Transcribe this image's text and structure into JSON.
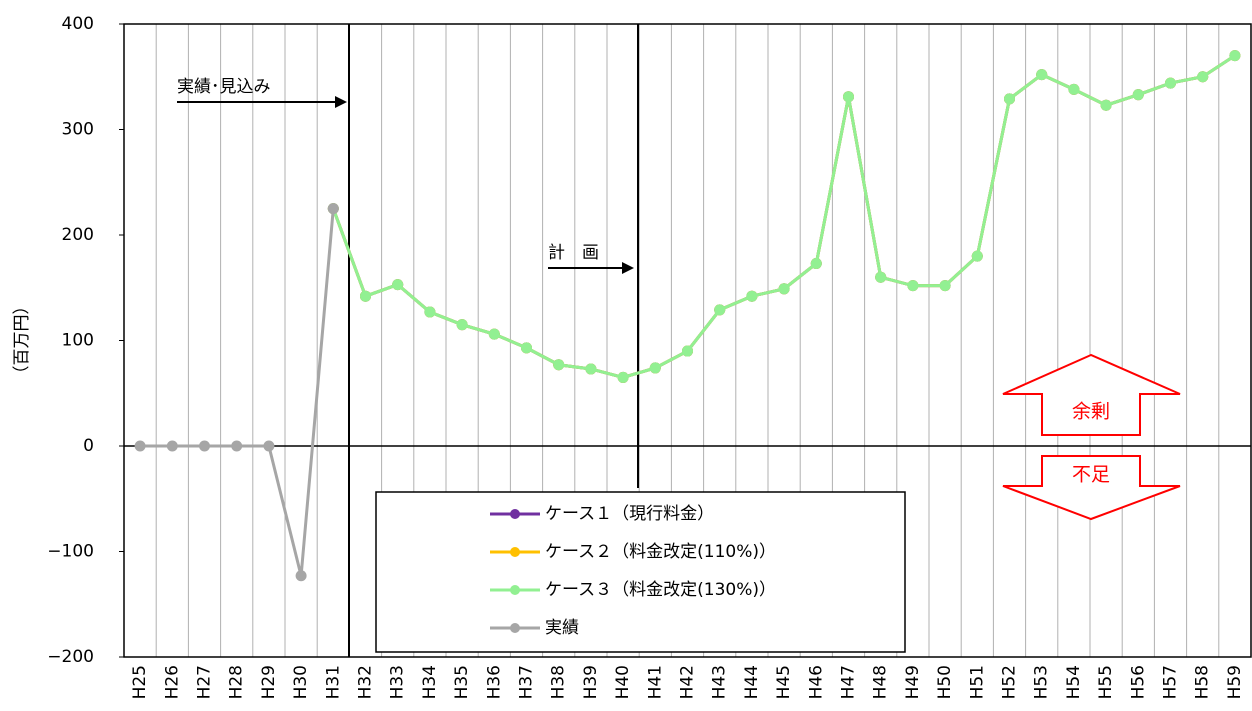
{
  "chart_data": {
    "type": "line",
    "y_label": "（百万円）",
    "categories": [
      "H25",
      "H26",
      "H27",
      "H28",
      "H29",
      "H30",
      "H31",
      "H32",
      "H33",
      "H34",
      "H35",
      "H36",
      "H37",
      "H38",
      "H39",
      "H40",
      "H41",
      "H42",
      "H43",
      "H44",
      "H45",
      "H46",
      "H47",
      "H48",
      "H49",
      "H50",
      "H51",
      "H52",
      "H53",
      "H54",
      "H55",
      "H56",
      "H57",
      "H58",
      "H59"
    ],
    "series": [
      {
        "name": "ケース１（現行料金）",
        "color": "#7030a0",
        "values": [
          null,
          null,
          null,
          null,
          null,
          null,
          225,
          142,
          153,
          127,
          115,
          106,
          93,
          77,
          73,
          65,
          74,
          90,
          129,
          142,
          149,
          173,
          331,
          160,
          152,
          152,
          180,
          329,
          352,
          338,
          323,
          333,
          344,
          350,
          370
        ]
      },
      {
        "name": "ケース２（料金改定(110%)）",
        "color": "#ffc000",
        "values": [
          null,
          null,
          null,
          null,
          null,
          null,
          225,
          142,
          153,
          127,
          115,
          106,
          93,
          77,
          73,
          65,
          74,
          90,
          129,
          142,
          149,
          173,
          331,
          160,
          152,
          152,
          180,
          329,
          352,
          338,
          323,
          333,
          344,
          350,
          370
        ]
      },
      {
        "name": "ケース３（料金改定(130%)）",
        "color": "#92f092",
        "values": [
          null,
          null,
          null,
          null,
          null,
          null,
          225,
          142,
          153,
          127,
          115,
          106,
          93,
          77,
          73,
          65,
          74,
          90,
          129,
          142,
          149,
          173,
          331,
          160,
          152,
          152,
          180,
          329,
          352,
          338,
          323,
          333,
          344,
          350,
          370
        ]
      },
      {
        "name": "実績",
        "color": "#a6a6a6",
        "values": [
          0,
          0,
          0,
          0,
          0,
          -123,
          225,
          null,
          null,
          null,
          null,
          null,
          null,
          null,
          null,
          null,
          null,
          null,
          null,
          null,
          null,
          null,
          null,
          null,
          null,
          null,
          null,
          null,
          null,
          null,
          null,
          null,
          null,
          null,
          null
        ]
      }
    ],
    "ylim": [
      -200,
      400
    ],
    "yticks": [
      {
        "value": -200,
        "label": "−200"
      },
      {
        "value": -100,
        "label": "−100"
      },
      0,
      100,
      200,
      300,
      400
    ],
    "annotations": [
      "実績･見込み",
      "計　画",
      "余剰",
      "不足"
    ]
  }
}
